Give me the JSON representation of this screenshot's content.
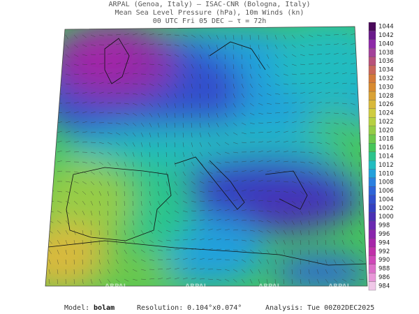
{
  "header": {
    "lines": [
      "ARPAL (Genoa, Italy)  –  ISAC-CNR (Bologna, Italy)",
      "Mean Sea Level Pressure (hPa), 10m Winds (kn)",
      "00 UTC Fri 05 DEC  –  τ = 72h"
    ]
  },
  "colorbar": {
    "levels": [
      1044,
      1042,
      1040,
      1038,
      1036,
      1034,
      1032,
      1030,
      1028,
      1026,
      1024,
      1022,
      1020,
      1018,
      1016,
      1014,
      1012,
      1010,
      1008,
      1006,
      1004,
      1002,
      1000,
      998,
      996,
      994,
      992,
      990,
      988,
      986,
      984
    ],
    "colors": [
      "#4a0a5a",
      "#6a1b8a",
      "#8e2aa8",
      "#a3429a",
      "#b8527a",
      "#c9665a",
      "#d47a3a",
      "#d88a30",
      "#d9a236",
      "#d8b93c",
      "#cfcc40",
      "#b7d042",
      "#96cc46",
      "#6ec84c",
      "#46c65a",
      "#2cc48c",
      "#22bcc0",
      "#22a0dc",
      "#2a80e0",
      "#2e64d8",
      "#3250cc",
      "#3440c0",
      "#4a30b4",
      "#6a2ab0",
      "#8a26ac",
      "#a626a8",
      "#c030a8",
      "#d048b8",
      "#dc70c8",
      "#e898d8",
      "#f0c8e8"
    ]
  },
  "watermarks": [
    "ARPAL",
    "ARPAL",
    "ARPAL",
    "ARPAL"
  ],
  "footer": {
    "model_label": "Model:",
    "model": "bolam",
    "resolution_label": "Resolution:",
    "resolution": "0.104°x0.074°",
    "analysis_label": "Analysis:",
    "analysis": "Tue 00Z02DEC2025"
  }
}
